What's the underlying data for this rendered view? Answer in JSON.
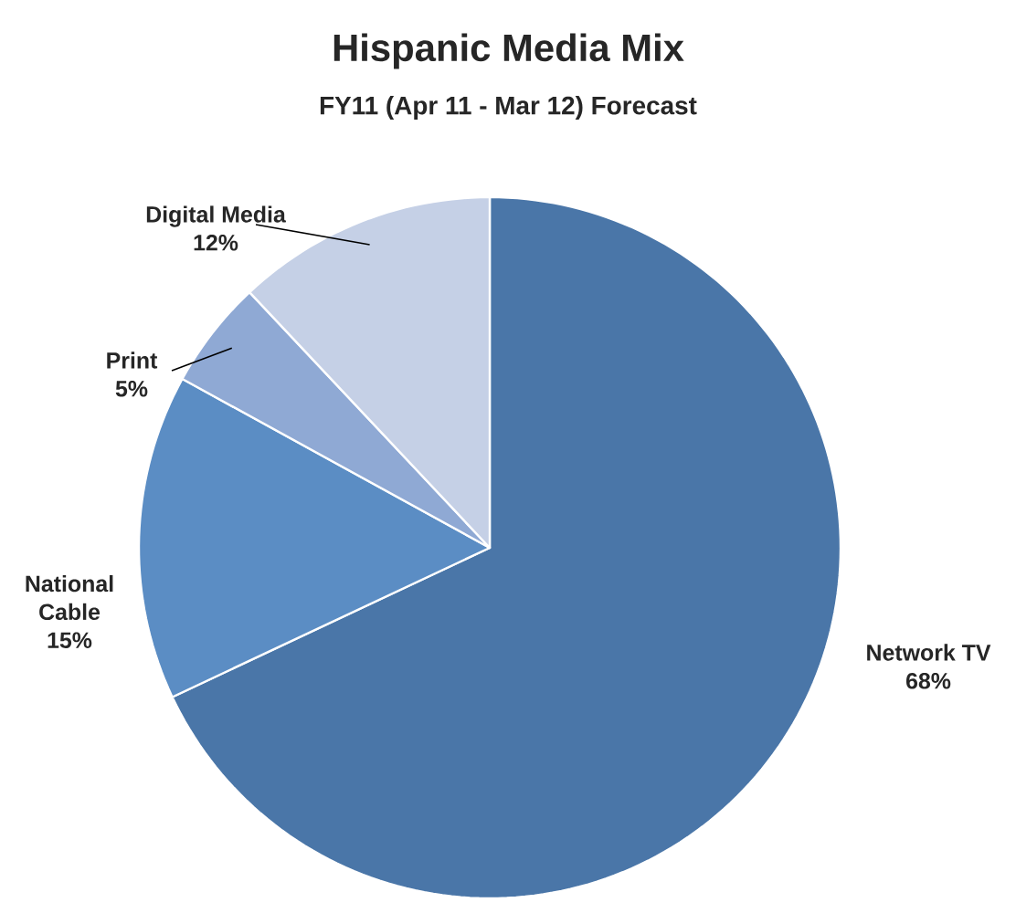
{
  "chart_data": {
    "type": "pie",
    "title": "Hispanic Media Mix",
    "subtitle": "FY11 (Apr 11 - Mar 12) Forecast",
    "categories": [
      "Network TV",
      "National Cable",
      "Print",
      "Digital Media"
    ],
    "values": [
      68,
      15,
      5,
      12
    ],
    "value_labels": [
      "68%",
      "15%",
      "5%",
      "12%"
    ],
    "colors": [
      "#4a76a8",
      "#5b8dc4",
      "#8fa9d4",
      "#c5d0e6"
    ]
  }
}
